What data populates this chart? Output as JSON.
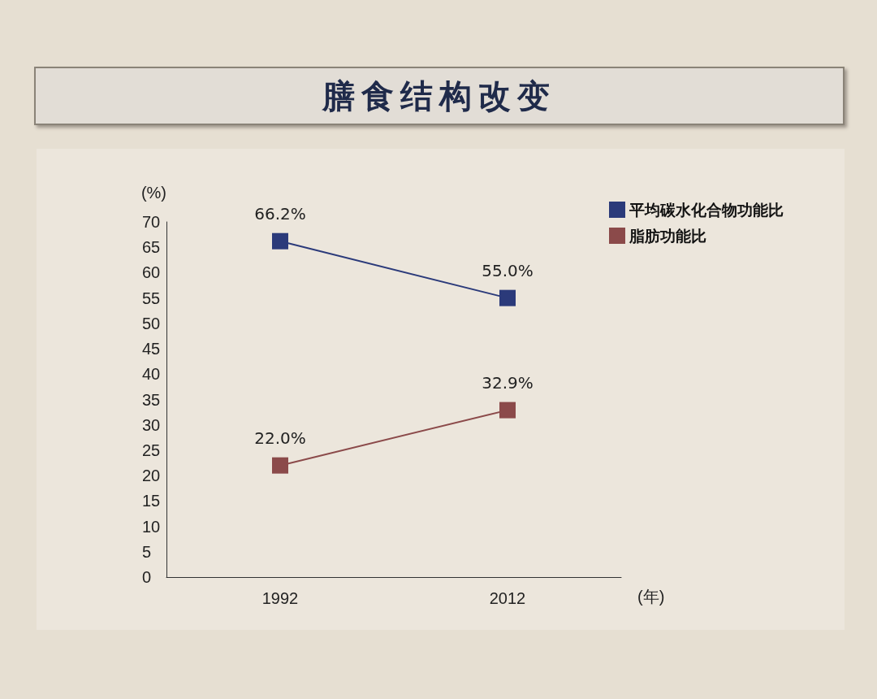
{
  "chart_data": {
    "type": "line",
    "title": "膳食结构改变",
    "ylabel": "(%)",
    "xlabel": "(年)",
    "categories": [
      "1992",
      "2012"
    ],
    "series": [
      {
        "name": "平均碳水化合物功能比",
        "color": "#2b3a7a",
        "values": [
          66.2,
          55.0
        ],
        "value_labels": [
          "66.2%",
          "55.0%"
        ]
      },
      {
        "name": "脂肪功能比",
        "color": "#8b4a4a",
        "values": [
          22.0,
          32.9
        ],
        "value_labels": [
          "22.0%",
          "32.9%"
        ]
      }
    ],
    "ylim": [
      0,
      70
    ],
    "yticks": [
      0,
      5,
      10,
      15,
      20,
      25,
      30,
      35,
      40,
      45,
      50,
      55,
      60,
      65,
      70
    ],
    "grid": false,
    "legend": "top right",
    "marker": "square",
    "line_style": "solid"
  }
}
